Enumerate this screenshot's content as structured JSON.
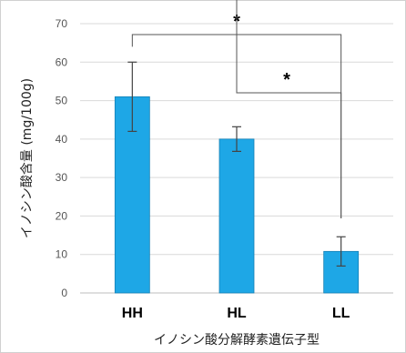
{
  "chart_data": {
    "type": "bar",
    "categories": [
      "HH",
      "HL",
      "LL"
    ],
    "values": [
      51,
      40,
      10.8
    ],
    "error": [
      9,
      3.2,
      3.8
    ],
    "xlabel": "イノシン酸分解酵素遺伝子型",
    "ylabel": "イノシン酸含量 (mg/100g)",
    "ylim": [
      0,
      70
    ],
    "yticks": [
      0,
      10,
      20,
      30,
      40,
      50,
      60,
      70
    ],
    "grid": true,
    "bar_color": "#1ea7e6",
    "significance": [
      {
        "from": "HH",
        "to": "LL",
        "label": "*"
      },
      {
        "from": "HL",
        "to": "LL",
        "label": "*"
      }
    ]
  }
}
